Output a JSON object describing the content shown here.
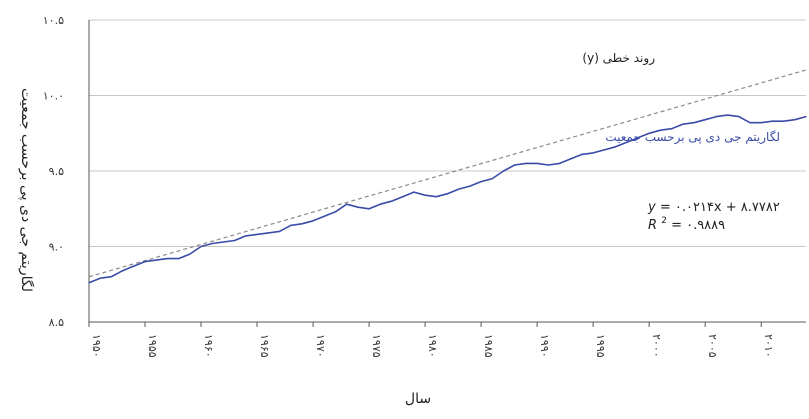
{
  "chart_data": {
    "type": "line",
    "title": "",
    "xlabel": "سال",
    "ylabel": "لگاریتم جی دی پی برحسب جمعیت",
    "xlim": [
      1950,
      2014
    ],
    "ylim": [
      8.5,
      10.5
    ],
    "grid": true,
    "y_ticks": [
      {
        "value": 8.5,
        "label": "۸.۵"
      },
      {
        "value": 9.0,
        "label": "۹.۰"
      },
      {
        "value": 9.5,
        "label": "۹.۵"
      },
      {
        "value": 10.0,
        "label": "۱۰.۰"
      },
      {
        "value": 10.5,
        "label": "۱۰.۵"
      }
    ],
    "x_ticks": [
      {
        "value": 1950,
        "label": "۱۹۵۰"
      },
      {
        "value": 1955,
        "label": "۱۹۵۵"
      },
      {
        "value": 1960,
        "label": "۱۹۶۰"
      },
      {
        "value": 1965,
        "label": "۱۹۶۵"
      },
      {
        "value": 1970,
        "label": "۱۹۷۰"
      },
      {
        "value": 1975,
        "label": "۱۹۷۵"
      },
      {
        "value": 1980,
        "label": "۱۹۸۰"
      },
      {
        "value": 1985,
        "label": "۱۹۸۵"
      },
      {
        "value": 1990,
        "label": "۱۹۹۰"
      },
      {
        "value": 1995,
        "label": "۱۹۹۵"
      },
      {
        "value": 2000,
        "label": "۲۰۰۰"
      },
      {
        "value": 2005,
        "label": "۲۰۰۵"
      },
      {
        "value": 2010,
        "label": "۲۰۱۰"
      }
    ],
    "series": [
      {
        "name": "لگاریتم جی دی پی برحسب جمعیت",
        "color": "#3b4ba8",
        "style": "solid",
        "x": [
          1950,
          1951,
          1952,
          1953,
          1954,
          1955,
          1956,
          1957,
          1958,
          1959,
          1960,
          1961,
          1962,
          1963,
          1964,
          1965,
          1966,
          1967,
          1968,
          1969,
          1970,
          1971,
          1972,
          1973,
          1974,
          1975,
          1976,
          1977,
          1978,
          1979,
          1980,
          1981,
          1982,
          1983,
          1984,
          1985,
          1986,
          1987,
          1988,
          1989,
          1990,
          1991,
          1992,
          1993,
          1994,
          1995,
          1996,
          1997,
          1998,
          1999,
          2000,
          2001,
          2002,
          2003,
          2004,
          2005,
          2006,
          2007,
          2008,
          2009,
          2010,
          2011,
          2012,
          2013,
          2014
        ],
        "y": [
          8.76,
          8.79,
          8.8,
          8.84,
          8.87,
          8.9,
          8.91,
          8.92,
          8.92,
          8.95,
          9.0,
          9.02,
          9.03,
          9.04,
          9.07,
          9.08,
          9.09,
          9.1,
          9.14,
          9.15,
          9.17,
          9.2,
          9.23,
          9.28,
          9.26,
          9.25,
          9.28,
          9.3,
          9.33,
          9.36,
          9.34,
          9.33,
          9.35,
          9.38,
          9.4,
          9.43,
          9.45,
          9.5,
          9.54,
          9.55,
          9.55,
          9.54,
          9.55,
          9.58,
          9.61,
          9.62,
          9.64,
          9.66,
          9.69,
          9.72,
          9.75,
          9.77,
          9.78,
          9.81,
          9.82,
          9.84,
          9.86,
          9.87,
          9.86,
          9.82,
          9.82,
          9.83,
          9.83,
          9.84,
          9.86
        ]
      },
      {
        "name": "روند خطی (y)",
        "color": "#8a8a8a",
        "style": "dashed",
        "trend_slope": 0.0214,
        "trend_intercept": 8.7782
      }
    ],
    "annotations": {
      "trend_label": "روند خطی (y)",
      "series_label": "لگاریتم جی دی پی برحسب جمعیت",
      "equation_prefix": "y",
      "equation_rhs": "= ۰.۰۲۱۴x + ۸.۷۷۸۲",
      "r2_prefix": "R",
      "r2_sup": "2",
      "r2_rhs": " = ۰.۹۸۸۹"
    }
  }
}
